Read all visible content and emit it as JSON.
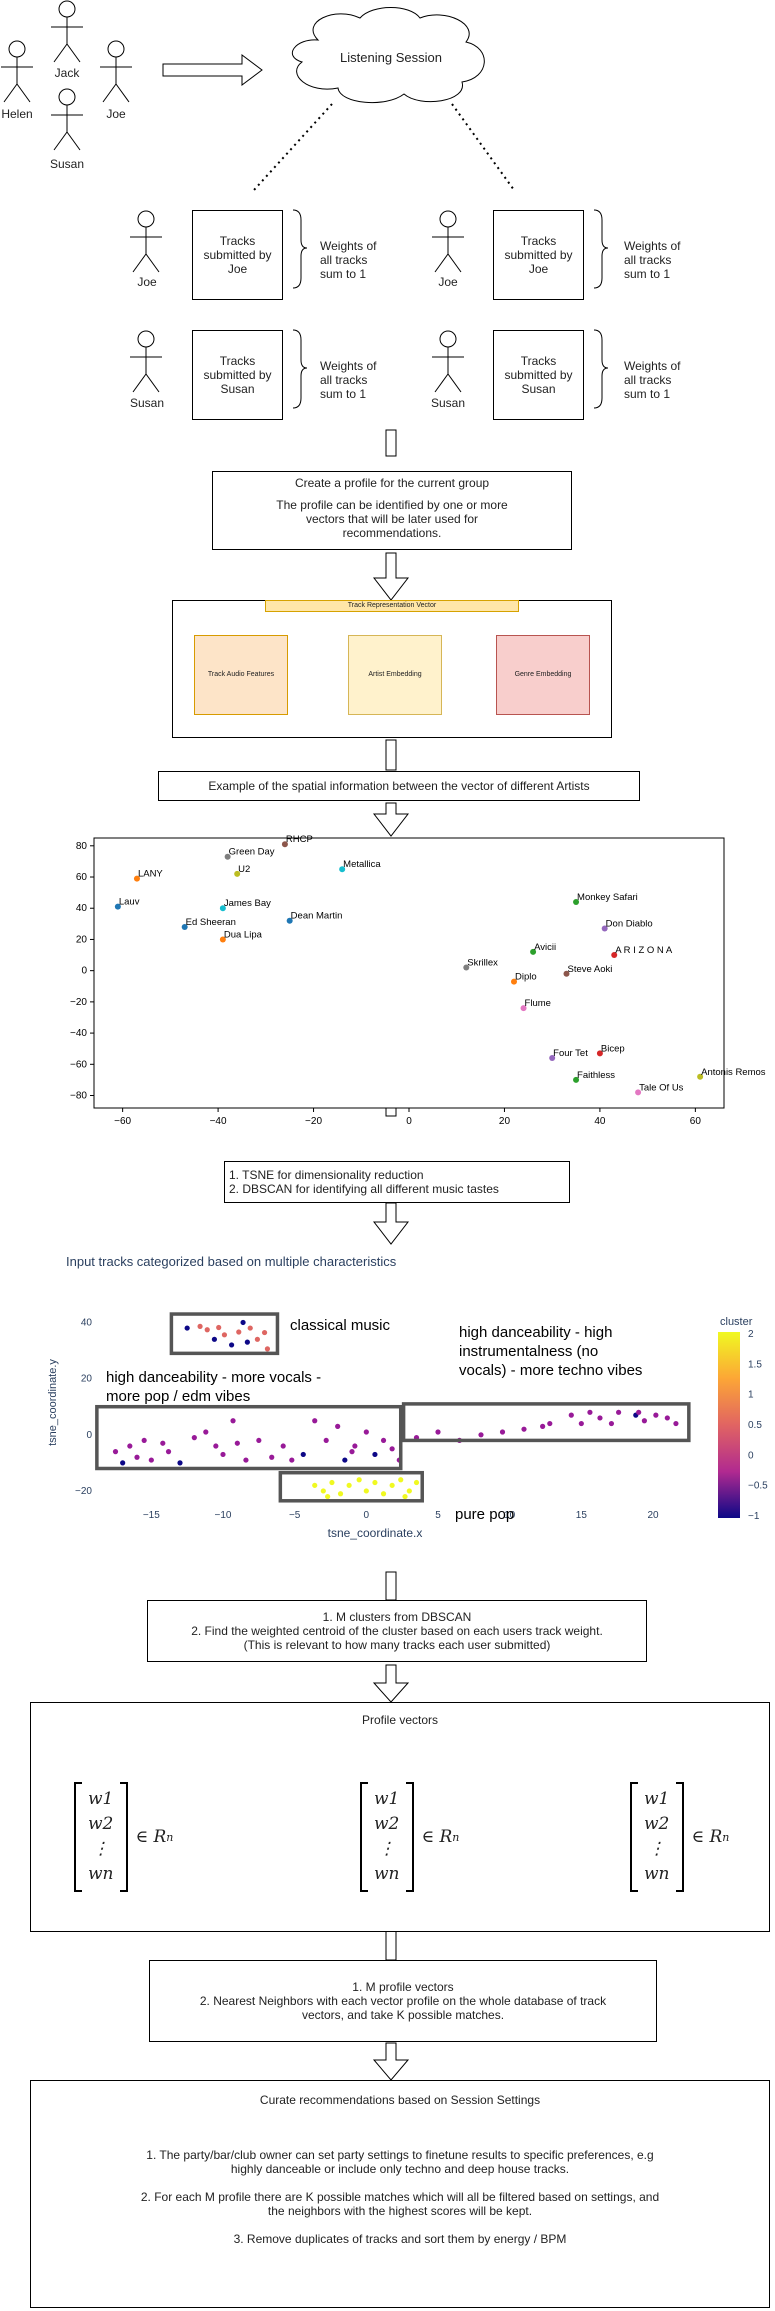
{
  "people": [
    "Helen",
    "Jack",
    "Joe",
    "Susan"
  ],
  "session": "Listening Session",
  "groups": [
    {
      "user": "Joe",
      "tracks": "Tracks\nsubmitted by\nJoe",
      "weights": "Weights of\nall tracks\nsum to 1"
    },
    {
      "user": "Joe",
      "tracks": "Tracks\nsubmitted by\nJoe",
      "weights": "Weights of\nall tracks\nsum to 1"
    },
    {
      "user": "Susan",
      "tracks": "Tracks\nsubmitted by\nSusan",
      "weights": "Weights of\nall tracks\nsum to 1"
    },
    {
      "user": "Susan",
      "tracks": "Tracks\nsubmitted by\nSusan",
      "weights": "Weights of\nall tracks\nsum to 1"
    }
  ],
  "profile_box": {
    "title": "Create a profile for the current group",
    "body": "The profile can be identified by one or more\nvectors that will be later used for\nrecommendations."
  },
  "vector": {
    "title": "Track Representation Vector",
    "items": [
      "Track Audio Features",
      "Artist Embedding",
      "Genre Embedding"
    ]
  },
  "spatial_caption": "Example of the spatial information between the vector of different Artists",
  "chart_data": [
    {
      "type": "scatter",
      "xlim": [
        -66,
        66
      ],
      "ylim": [
        -88,
        85
      ],
      "xticks": [
        -60,
        -40,
        -20,
        0,
        20,
        40,
        60
      ],
      "yticks": [
        80,
        60,
        40,
        20,
        0,
        -20,
        -40,
        -60,
        -80
      ],
      "points": [
        {
          "label": "RHCP",
          "x": -26,
          "y": 81,
          "color": "#8c564b"
        },
        {
          "label": "Green Day",
          "x": -38,
          "y": 73,
          "color": "#7f7f7f"
        },
        {
          "label": "U2",
          "x": -36,
          "y": 62,
          "color": "#bcbd22"
        },
        {
          "label": "Metallica",
          "x": -14,
          "y": 65,
          "color": "#17becf"
        },
        {
          "label": "LANY",
          "x": -57,
          "y": 59,
          "color": "#ff7f0e"
        },
        {
          "label": "Lauv",
          "x": -61,
          "y": 41,
          "color": "#1f77b4"
        },
        {
          "label": "James Bay",
          "x": -39,
          "y": 40,
          "color": "#17becf"
        },
        {
          "label": "Ed Sheeran",
          "x": -47,
          "y": 28,
          "color": "#1f77b4"
        },
        {
          "label": "Dean Martin",
          "x": -25,
          "y": 32,
          "color": "#1f77b4"
        },
        {
          "label": "Dua Lipa",
          "x": -39,
          "y": 20,
          "color": "#ff7f0e"
        },
        {
          "label": "Monkey Safari",
          "x": 35,
          "y": 44,
          "color": "#2ca02c"
        },
        {
          "label": "Don Diablo",
          "x": 41,
          "y": 27,
          "color": "#9467bd"
        },
        {
          "label": "Avicii",
          "x": 26,
          "y": 12,
          "color": "#2ca02c"
        },
        {
          "label": "A R I Z O N A",
          "x": 43,
          "y": 10,
          "color": "#d62728"
        },
        {
          "label": "Skrillex",
          "x": 12,
          "y": 2,
          "color": "#7f7f7f"
        },
        {
          "label": "Steve Aoki",
          "x": 33,
          "y": -2,
          "color": "#8c564b"
        },
        {
          "label": "Diplo",
          "x": 22,
          "y": -7,
          "color": "#ff7f0e"
        },
        {
          "label": "Flume",
          "x": 24,
          "y": -24,
          "color": "#e377c2"
        },
        {
          "label": "Four Tet",
          "x": 30,
          "y": -56,
          "color": "#9467bd"
        },
        {
          "label": "Bicep",
          "x": 40,
          "y": -53,
          "color": "#d62728"
        },
        {
          "label": "Antonis Remos",
          "x": 61,
          "y": -68,
          "color": "#bcbd22"
        },
        {
          "label": "Faithless",
          "x": 35,
          "y": -70,
          "color": "#2ca02c"
        },
        {
          "label": "Tale Of Us",
          "x": 48,
          "y": -78,
          "color": "#e377c2"
        }
      ]
    },
    {
      "type": "scatter",
      "xlabel": "tsne_coordinate.x",
      "ylabel": "tsne_coordinate.y",
      "xlim": [
        -19,
        23
      ],
      "ylim": [
        -25,
        48
      ],
      "xticks": [
        -15,
        -10,
        -5,
        0,
        5,
        10,
        15,
        20
      ],
      "yticks": [
        40,
        20,
        0,
        -20
      ],
      "colorbar": {
        "title": "cluster",
        "ticks": [
          "2",
          "1.5",
          "1",
          "0.5",
          "0",
          "-0.5",
          "-1"
        ],
        "range": [
          -1,
          2
        ]
      },
      "points": [
        {
          "x": -12.5,
          "y": 38,
          "c": -1
        },
        {
          "x": -11.6,
          "y": 38.6,
          "c": 0.8
        },
        {
          "x": -11.1,
          "y": 37.4,
          "c": 0.8
        },
        {
          "x": -10.6,
          "y": 34,
          "c": -1
        },
        {
          "x": -10.3,
          "y": 38.2,
          "c": 0.8
        },
        {
          "x": -9.9,
          "y": 35.6,
          "c": 0.8
        },
        {
          "x": -9.4,
          "y": 32,
          "c": -1
        },
        {
          "x": -8.9,
          "y": 36.6,
          "c": 0.8
        },
        {
          "x": -8.6,
          "y": 40,
          "c": -1
        },
        {
          "x": -8.3,
          "y": 33,
          "c": -1
        },
        {
          "x": -8.1,
          "y": 38,
          "c": 0.8
        },
        {
          "x": -7.6,
          "y": 34,
          "c": 0.8
        },
        {
          "x": -7.1,
          "y": 36.4,
          "c": 0.8
        },
        {
          "x": -6.9,
          "y": 30.6,
          "c": 0.8
        },
        {
          "x": -17.5,
          "y": -6,
          "c": 0
        },
        {
          "x": -17,
          "y": -10,
          "c": -1
        },
        {
          "x": -16.5,
          "y": -4,
          "c": 0
        },
        {
          "x": -16,
          "y": -8,
          "c": 0
        },
        {
          "x": -15.5,
          "y": -2,
          "c": 0
        },
        {
          "x": -15,
          "y": -9,
          "c": 0
        },
        {
          "x": -14.2,
          "y": -3,
          "c": 0
        },
        {
          "x": -13.8,
          "y": -6,
          "c": 0
        },
        {
          "x": -13,
          "y": -10,
          "c": -1
        },
        {
          "x": -12,
          "y": -1,
          "c": 0
        },
        {
          "x": -11.2,
          "y": 1,
          "c": 0
        },
        {
          "x": -10.5,
          "y": -4,
          "c": 0
        },
        {
          "x": -10,
          "y": -7,
          "c": 0
        },
        {
          "x": -9.3,
          "y": 5,
          "c": 0
        },
        {
          "x": -9,
          "y": -3,
          "c": 0
        },
        {
          "x": -8.4,
          "y": -9,
          "c": 0
        },
        {
          "x": -7.5,
          "y": -2,
          "c": 0
        },
        {
          "x": -6.6,
          "y": -8,
          "c": 0
        },
        {
          "x": -5.8,
          "y": -4,
          "c": 0
        },
        {
          "x": -5.2,
          "y": -9,
          "c": 0
        },
        {
          "x": -4.4,
          "y": -7,
          "c": -1
        },
        {
          "x": -3.6,
          "y": 5,
          "c": 0
        },
        {
          "x": -2.8,
          "y": -2,
          "c": 0
        },
        {
          "x": -2,
          "y": 3,
          "c": 0
        },
        {
          "x": -1.5,
          "y": -9,
          "c": -1
        },
        {
          "x": -0.8,
          "y": -4,
          "c": 0
        },
        {
          "x": 0,
          "y": 1,
          "c": 0
        },
        {
          "x": 0.6,
          "y": -7,
          "c": -1
        },
        {
          "x": 1.2,
          "y": -2,
          "c": 0
        },
        {
          "x": 1.8,
          "y": -5,
          "c": 0
        },
        {
          "x": 2.3,
          "y": -9,
          "c": 0
        },
        {
          "x": -1,
          "y": -6,
          "c": 0
        },
        {
          "x": 3.5,
          "y": -1,
          "c": 0
        },
        {
          "x": 5,
          "y": 1,
          "c": 0
        },
        {
          "x": 6.5,
          "y": -2,
          "c": 0
        },
        {
          "x": 8,
          "y": 0,
          "c": 0
        },
        {
          "x": 9.5,
          "y": 1,
          "c": 0
        },
        {
          "x": 11,
          "y": 2,
          "c": 0
        },
        {
          "x": 12.3,
          "y": 3,
          "c": 0
        },
        {
          "x": 12.8,
          "y": 4,
          "c": 0
        },
        {
          "x": 14.3,
          "y": 7,
          "c": 0
        },
        {
          "x": 15,
          "y": 4,
          "c": 0
        },
        {
          "x": 15.6,
          "y": 8,
          "c": 0
        },
        {
          "x": 16.3,
          "y": 6,
          "c": 0
        },
        {
          "x": 17.1,
          "y": 4,
          "c": 0
        },
        {
          "x": 17.6,
          "y": 8,
          "c": 0
        },
        {
          "x": 18.8,
          "y": 7,
          "c": -1
        },
        {
          "x": 19.4,
          "y": 5,
          "c": 0
        },
        {
          "x": 20.2,
          "y": 7,
          "c": 0
        },
        {
          "x": 21,
          "y": 6,
          "c": 0
        },
        {
          "x": 21.6,
          "y": 4,
          "c": 0
        },
        {
          "x": 19,
          "y": 8,
          "c": 0
        },
        {
          "x": -3.6,
          "y": -18,
          "c": 2
        },
        {
          "x": -3,
          "y": -20,
          "c": 2
        },
        {
          "x": -2.4,
          "y": -17,
          "c": 2
        },
        {
          "x": -1.8,
          "y": -21,
          "c": 2
        },
        {
          "x": -1.2,
          "y": -18,
          "c": 2
        },
        {
          "x": -0.5,
          "y": -16,
          "c": 2
        },
        {
          "x": 0,
          "y": -20,
          "c": 2
        },
        {
          "x": 0.6,
          "y": -17,
          "c": 2
        },
        {
          "x": 1.2,
          "y": -21,
          "c": 2
        },
        {
          "x": 1.8,
          "y": -18,
          "c": 2
        },
        {
          "x": 2.4,
          "y": -16,
          "c": 2
        },
        {
          "x": 3,
          "y": -20,
          "c": 2
        },
        {
          "x": 3.5,
          "y": -17,
          "c": 2
        },
        {
          "x": -2.7,
          "y": -22,
          "c": 2
        },
        {
          "x": 2.7,
          "y": -22,
          "c": 2
        }
      ],
      "annotations": [
        "classical music",
        "high danceability - more vocals -\nmore pop / edm vibes",
        "high danceability - high\ninstrumentalness (no\nvocals) - more techno vibes",
        "pure pop"
      ]
    }
  ],
  "steps": {
    "tsne": "1. TSNE for dimensionality reduction\n2. DBSCAN for identifying all different music tastes",
    "input_caption": "Input tracks categorized based on multiple characteristics",
    "clusters": "1. M clusters from DBSCAN\n2. Find the weighted centroid of the cluster based on each users track weight.\n(This is relevant to how many tracks each user submitted)",
    "profile_vectors": "Profile vectors",
    "vector_entries": [
      "w1",
      "w2",
      "⋮",
      "wn"
    ],
    "vector_set": "∈ R",
    "vector_exp": "n",
    "nn": "1. M profile vectors\n2. Nearest Neighbors with each vector profile on the whole database of track\nvectors, and take K possible matches.",
    "curate_title": "Curate recommendations based on Session Settings",
    "curate_items": [
      "1. The party/bar/club owner can set party settings to finetune results to specific preferences, e.g\nhighly danceable or include only techno and deep house tracks.",
      "2. For each M profile there are K possible matches which will all be filtered based on settings, and\nthe neighbors with the highest scores will be kept.",
      "3. Remove duplicates of tracks and sort them by energy / BPM"
    ]
  }
}
